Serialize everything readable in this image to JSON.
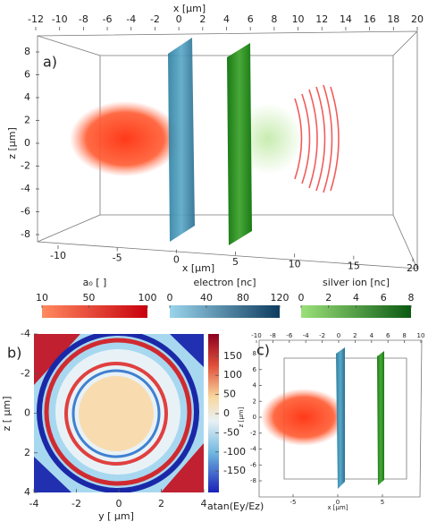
{
  "panel_a": {
    "label": "a)",
    "top_axis": {
      "label": "x [μm]",
      "lim": [
        -12,
        20
      ],
      "ticks": [
        -12,
        -10,
        -8,
        -6,
        -4,
        -2,
        0,
        2,
        4,
        6,
        8,
        10,
        12,
        14,
        16,
        18,
        20
      ]
    },
    "bottom_axis": {
      "label": "x [μm]",
      "lim": [
        -10,
        20
      ],
      "ticks": [
        -10,
        -5,
        0,
        5,
        10,
        15,
        20
      ]
    },
    "z_axis": {
      "label": "z [μm]",
      "lim": [
        -8,
        8
      ],
      "ticks": [
        8,
        6,
        4,
        2,
        0,
        -2,
        -4,
        -6,
        -8
      ]
    }
  },
  "colorbars": [
    {
      "label": "a₀ [ ]",
      "lim": [
        10,
        100
      ],
      "ticks": [
        10,
        50,
        100
      ],
      "colors": [
        "#ff8a60",
        "#c8000c"
      ]
    },
    {
      "label": "electron [nc]",
      "lim": [
        0,
        120
      ],
      "ticks": [
        0,
        40,
        80,
        120
      ],
      "colors": [
        "#9ad4ec",
        "#0e3c5e"
      ]
    },
    {
      "label": "silver ion [nc]",
      "lim": [
        0,
        8
      ],
      "ticks": [
        0,
        2,
        4,
        6,
        8
      ],
      "colors": [
        "#9be07a",
        "#0b5a12"
      ]
    }
  ],
  "panel_b": {
    "label": "b)",
    "x_axis": {
      "label": "y [ μm]",
      "lim": [
        -4,
        4
      ],
      "ticks": [
        -4,
        -2,
        0,
        2,
        4
      ]
    },
    "y_axis": {
      "label": "z [ μm]",
      "lim": [
        -4,
        4
      ],
      "ticks": [
        -4,
        -2,
        0,
        2,
        4
      ]
    },
    "colorbar": {
      "label": "atan(Ey/Ez)",
      "lim": [
        -180,
        180
      ],
      "ticks": [
        150,
        100,
        50,
        0,
        -50,
        -100,
        -150
      ]
    }
  },
  "panel_c": {
    "label": "c)",
    "top_axis": {
      "lim": [
        -10,
        10
      ],
      "ticks": [
        -10,
        -8,
        -6,
        -4,
        -2,
        0,
        2,
        4,
        6,
        8,
        10
      ]
    },
    "bottom_axis": {
      "label": "x [μm]",
      "lim": [
        -5,
        5
      ],
      "ticks": [
        -5,
        0,
        5
      ]
    },
    "z_axis": {
      "label": "z [μm]",
      "lim": [
        -8,
        8
      ],
      "ticks": [
        8,
        6,
        4,
        2,
        0,
        -2,
        -4,
        -6,
        -8
      ]
    }
  }
}
